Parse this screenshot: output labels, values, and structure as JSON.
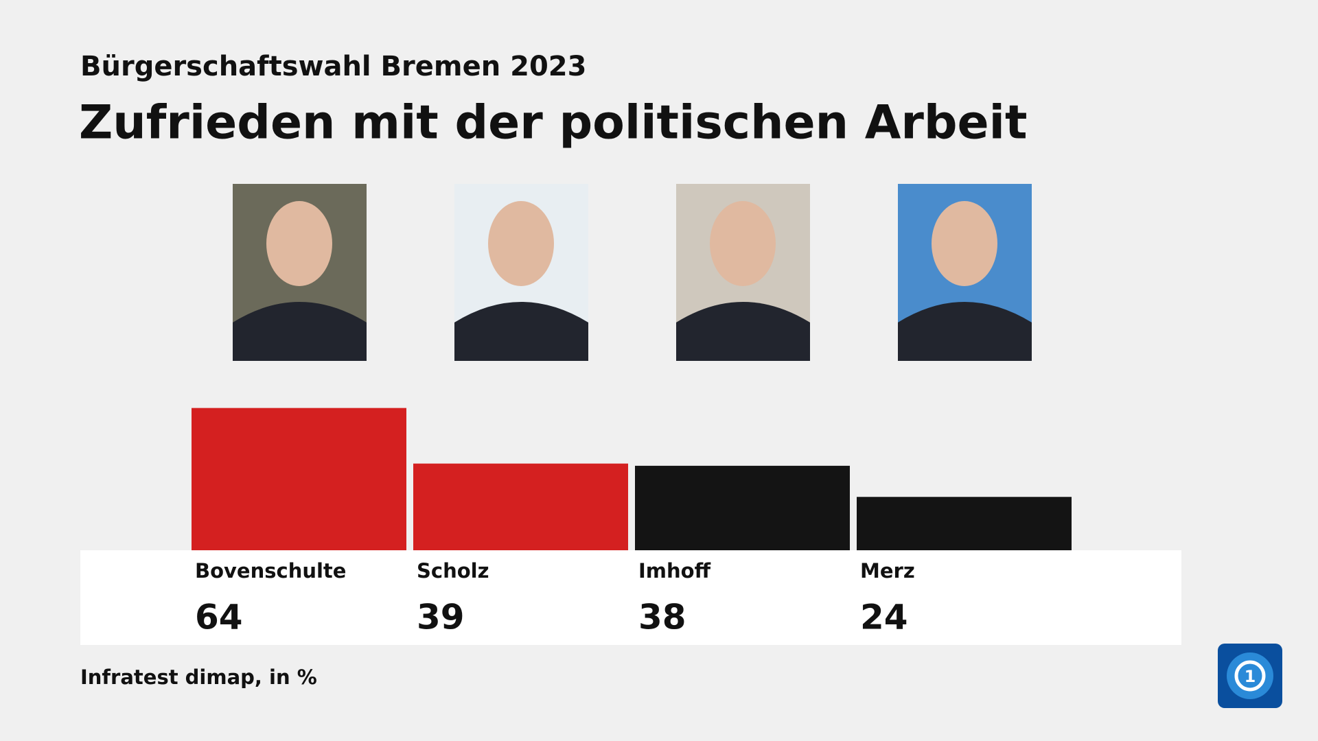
{
  "chart_data": {
    "type": "bar",
    "subtitle": "Bürgerschaftswahl Bremen 2023",
    "title": "Zufrieden mit der politischen Arbeit",
    "categories": [
      "Bovenschulte",
      "Scholz",
      "Imhoff",
      "Merz"
    ],
    "values": [
      64,
      39,
      38,
      24
    ],
    "colors": [
      "#d42020",
      "#d42020",
      "#141414",
      "#141414"
    ],
    "source": "Infratest dimap, in %"
  }
}
